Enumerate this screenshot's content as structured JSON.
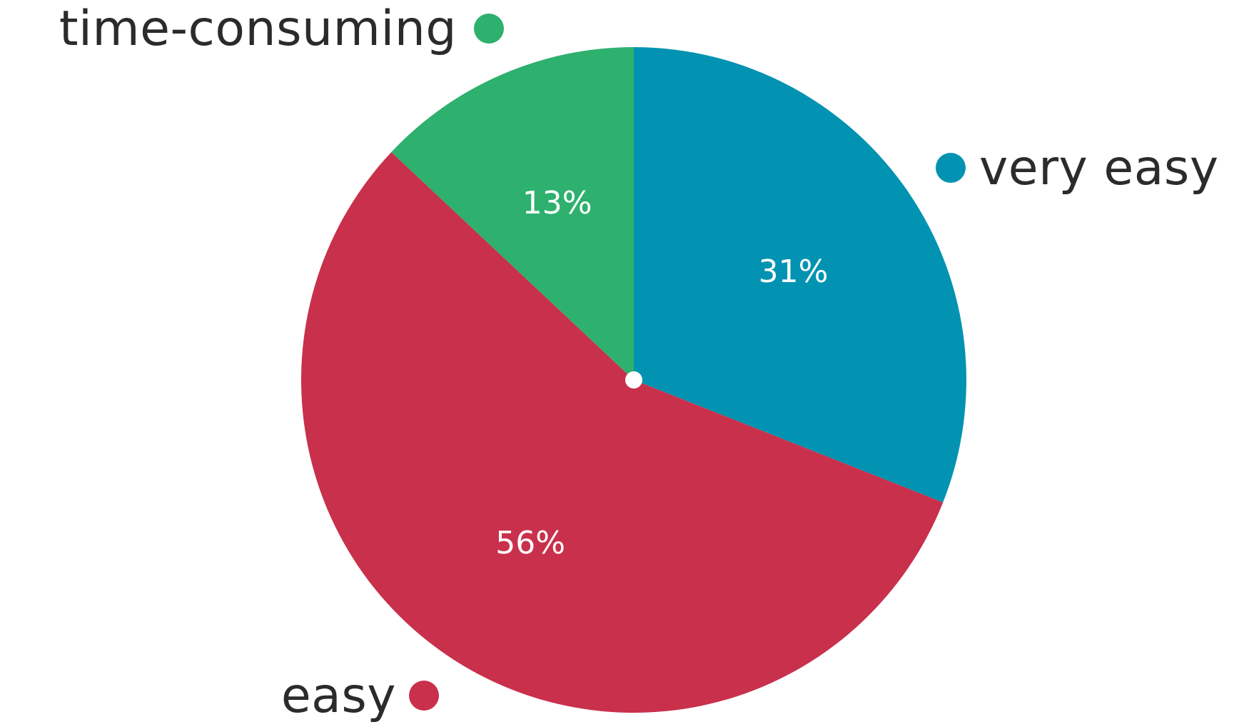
{
  "chart_data": {
    "type": "pie",
    "slices": [
      {
        "label": "very easy",
        "value": 31,
        "display": "31%",
        "color": "#0193b1"
      },
      {
        "label": "easy",
        "value": 56,
        "display": "56%",
        "color": "#c9304b"
      },
      {
        "label": "time-consuming",
        "value": 13,
        "display": "13%",
        "color": "#2eb06e"
      }
    ]
  }
}
